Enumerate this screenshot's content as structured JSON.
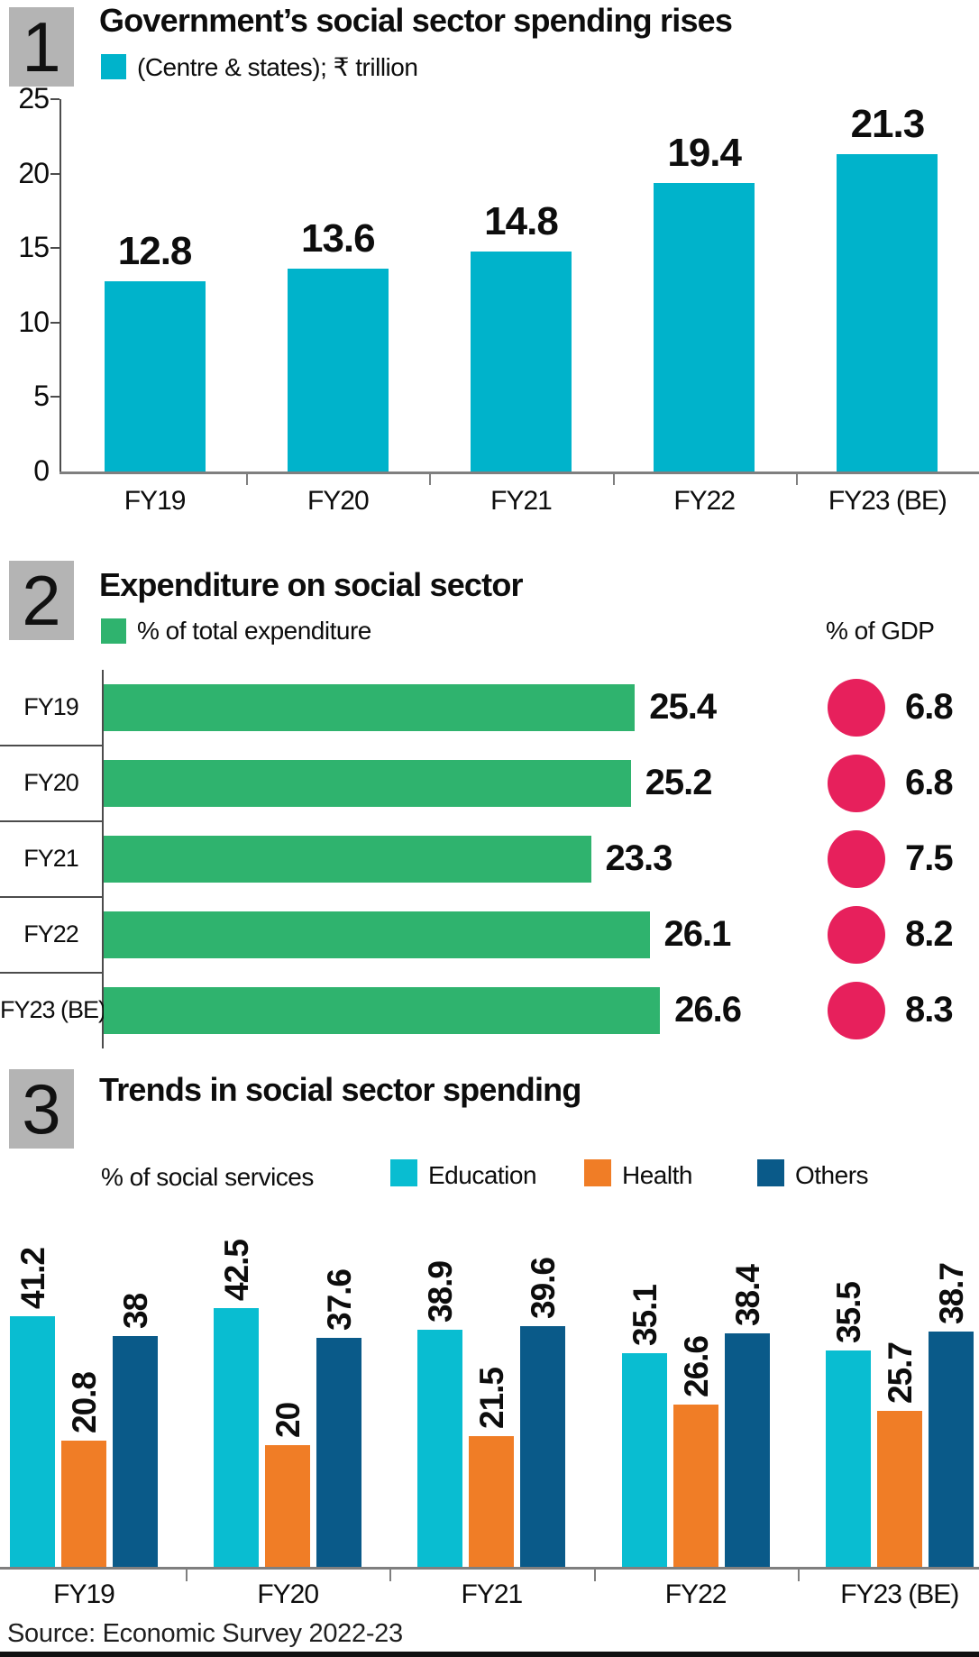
{
  "page": {
    "source": "Source: Economic Survey 2022-23"
  },
  "colors": {
    "cyan": "#00b3cb",
    "cyan_light": "#09bdd1",
    "green": "#2fb36e",
    "crimson": "#e7205c",
    "orange": "#f07d26",
    "navy": "#0a5a89",
    "badge_gray": "#b4b4b4",
    "axis_gray": "#7f7f7f",
    "line_dark": "#4c4c4c",
    "ink": "#0d0d0d"
  },
  "chart_data": [
    {
      "type": "bar",
      "panel_number": "1",
      "title": "Government’s social sector spending rises",
      "legend": [
        {
          "label": "(Centre & states); ₹ trillion",
          "color_key": "cyan"
        }
      ],
      "categories": [
        "FY19",
        "FY20",
        "FY21",
        "FY22",
        "FY23 (BE)"
      ],
      "values": [
        12.8,
        13.6,
        14.8,
        19.4,
        21.3
      ],
      "bar_color_key": "cyan",
      "xlabel": "",
      "ylabel": "",
      "ylim": [
        0,
        25
      ],
      "yticks": [
        0,
        5,
        10,
        15,
        20,
        25
      ],
      "grid": false,
      "legend_position": "top-left"
    },
    {
      "type": "bar",
      "orientation": "horizontal",
      "panel_number": "2",
      "title": "Expenditure on social sector",
      "categories": [
        "FY19",
        "FY20",
        "FY21",
        "FY22",
        "FY23 (BE)"
      ],
      "series": [
        {
          "name": "% of total expenditure",
          "marker": "bar",
          "color_key": "green",
          "values": [
            25.4,
            25.2,
            23.3,
            26.1,
            26.6
          ]
        },
        {
          "name": "% of GDP",
          "marker": "circle",
          "color_key": "crimson",
          "values": [
            6.8,
            6.8,
            7.5,
            8.2,
            8.3
          ]
        }
      ],
      "xlim": [
        0,
        30
      ],
      "grid": false,
      "legend_position": "top"
    },
    {
      "type": "bar",
      "panel_number": "3",
      "title": "Trends in social sector spending",
      "subtitle": "% of social services",
      "categories": [
        "FY19",
        "FY20",
        "FY21",
        "FY22",
        "FY23 (BE)"
      ],
      "series": [
        {
          "name": "Education",
          "color_key": "cyan_light",
          "values": [
            41.2,
            42.5,
            38.9,
            35.1,
            35.5
          ]
        },
        {
          "name": "Health",
          "color_key": "orange",
          "values": [
            20.8,
            20,
            21.5,
            26.6,
            25.7
          ]
        },
        {
          "name": "Others",
          "color_key": "navy",
          "values": [
            38,
            37.6,
            39.6,
            38.4,
            38.7
          ]
        }
      ],
      "ylim": [
        0,
        45
      ],
      "grid": false,
      "legend_position": "top"
    }
  ]
}
